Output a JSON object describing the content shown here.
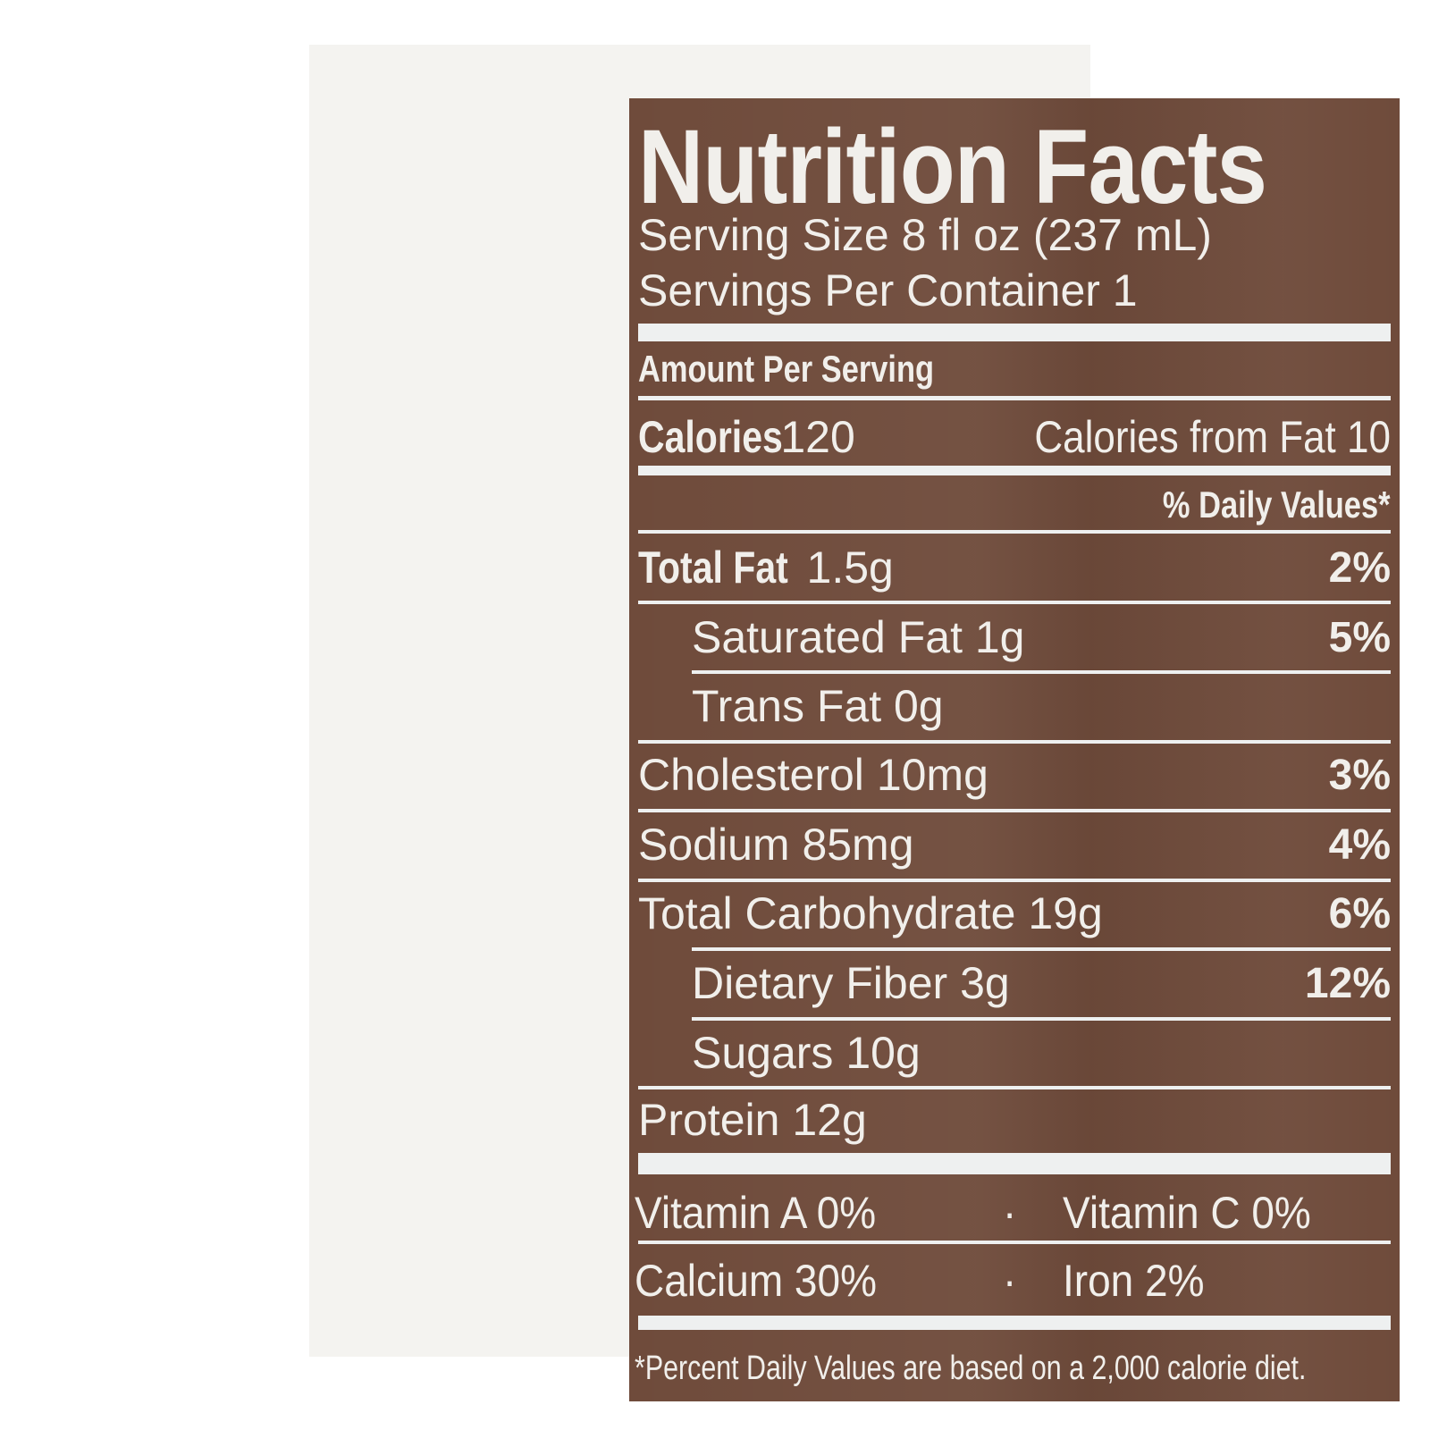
{
  "title": "Nutrition Facts",
  "serving_size": "Serving Size 8 fl oz (237 mL)",
  "servings_per_container": "Servings Per Container 1",
  "amount_per_serving": "Amount Per Serving",
  "calories": {
    "label": "Calories",
    "value": "120"
  },
  "calories_from_fat": "Calories from Fat 10",
  "daily_values_header": "% Daily Values*",
  "nutrients": [
    {
      "name": "Total Fat",
      "amount": "1.5g",
      "dv": "2%",
      "indent": false,
      "bold": true
    },
    {
      "name": "Saturated Fat",
      "amount": "1g",
      "dv": "5%",
      "indent": true,
      "bold": false
    },
    {
      "name": "Trans Fat",
      "amount": "0g",
      "dv": "",
      "indent": true,
      "bold": false
    },
    {
      "name": "Cholesterol",
      "amount": "10mg",
      "dv": "3%",
      "indent": false,
      "bold": false
    },
    {
      "name": "Sodium",
      "amount": "85mg",
      "dv": "4%",
      "indent": false,
      "bold": false
    },
    {
      "name": "Total Carbohydrate",
      "amount": "19g",
      "dv": "6%",
      "indent": false,
      "bold": false
    },
    {
      "name": "Dietary Fiber",
      "amount": "3g",
      "dv": "12%",
      "indent": true,
      "bold": false
    },
    {
      "name": "Sugars",
      "amount": "10g",
      "dv": "",
      "indent": true,
      "bold": false
    },
    {
      "name": "Protein",
      "amount": "12g",
      "dv": "",
      "indent": false,
      "bold": false
    }
  ],
  "vitamins": [
    {
      "left": "Vitamin A 0%",
      "sep": "·",
      "right": "Vitamin C 0%"
    },
    {
      "left": "Calcium 30%",
      "sep": "·",
      "right": "Iron 2%"
    }
  ],
  "footnote": "*Percent Daily Values are based on a 2,000 calorie diet.",
  "colors": {
    "panel": "#6f4b3b",
    "text": "#f1efeb"
  }
}
